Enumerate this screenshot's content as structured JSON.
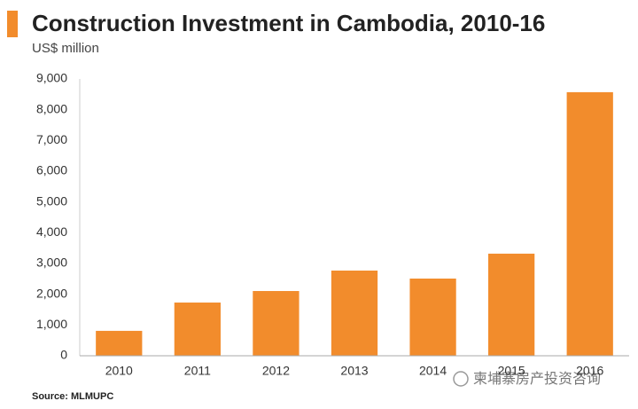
{
  "chart_data": {
    "type": "bar",
    "title": "Construction Investment in Cambodia, 2010-16",
    "subtitle": "US$ million",
    "categories": [
      "2010",
      "2011",
      "2012",
      "2013",
      "2014",
      "2015",
      "2016"
    ],
    "values": [
      810,
      1730,
      2105,
      2770,
      2510,
      3320,
      8570
    ],
    "color": "#f28c2c",
    "ylim": [
      0,
      9000
    ],
    "yticks": [
      0,
      {
        "value": 1000,
        "label": "1,000"
      },
      {
        "value": 2000,
        "label": "2,000"
      },
      {
        "value": 3000,
        "label": "3,000"
      },
      {
        "value": 4000,
        "label": "4,000"
      },
      {
        "value": 5000,
        "label": "5,000"
      },
      {
        "value": 6000,
        "label": "6,000"
      },
      {
        "value": 7000,
        "label": "7,000"
      },
      {
        "value": 8000,
        "label": "8,000"
      },
      {
        "value": 9000,
        "label": "9,000"
      }
    ],
    "grid": false,
    "source": "Source: MLMUPC",
    "watermark": "柬埔寨房产投资咨询"
  }
}
